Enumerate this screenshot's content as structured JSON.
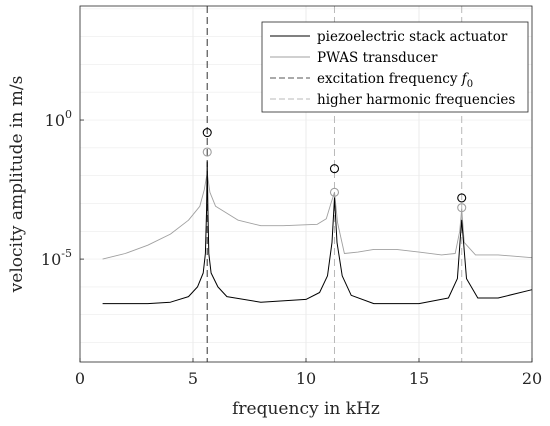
{
  "chart_data": {
    "type": "line",
    "xlabel": "frequency in kHz",
    "ylabel": "velocity amplitude in m/s",
    "xlim": [
      0,
      20
    ],
    "ylim_log10": [
      -8.7,
      4.1
    ],
    "yscale": "log",
    "grid": true,
    "legend_placement": "top-right",
    "x_ticks": [
      {
        "value": 0,
        "label": "0"
      },
      {
        "value": 5,
        "label": "5"
      },
      {
        "value": 10,
        "label": "10"
      },
      {
        "value": 15,
        "label": "15"
      },
      {
        "value": 20,
        "label": "20"
      }
    ],
    "y_ticks": [
      {
        "log10": 0,
        "base": "10",
        "exp": "0"
      },
      {
        "log10": -5,
        "base": "10",
        "exp": "-5"
      }
    ],
    "legend": [
      {
        "label": "piezoelectric stack actuator",
        "color": "#000000",
        "dash": "solid"
      },
      {
        "label": "PWAS transducer",
        "color": "#a0a0a0",
        "dash": "solid"
      },
      {
        "label": "excitation frequency ",
        "label_math": "f",
        "label_sub": "0",
        "color": "#555555",
        "dash": "dashed"
      },
      {
        "label": "higher harmonic frequencies",
        "color": "#b8b8b8",
        "dash": "dashed"
      }
    ],
    "reference_lines": [
      {
        "x": 5.63,
        "kind": "excitation"
      },
      {
        "x": 11.26,
        "kind": "harmonic"
      },
      {
        "x": 16.89,
        "kind": "harmonic"
      }
    ],
    "series": [
      {
        "name": "piezoelectric stack actuator",
        "color": "#000000",
        "points": [
          [
            1.0,
            -6.6
          ],
          [
            2.0,
            -6.6
          ],
          [
            3.0,
            -6.6
          ],
          [
            4.0,
            -6.55
          ],
          [
            4.8,
            -6.35
          ],
          [
            5.2,
            -6.0
          ],
          [
            5.45,
            -5.5
          ],
          [
            5.55,
            -4.8
          ],
          [
            5.6,
            -3.2
          ],
          [
            5.63,
            -1.5
          ],
          [
            5.66,
            -3.2
          ],
          [
            5.7,
            -4.8
          ],
          [
            5.8,
            -5.5
          ],
          [
            6.1,
            -6.0
          ],
          [
            6.5,
            -6.35
          ],
          [
            8.0,
            -6.55
          ],
          [
            10.0,
            -6.45
          ],
          [
            10.6,
            -6.2
          ],
          [
            10.95,
            -5.6
          ],
          [
            11.15,
            -4.4
          ],
          [
            11.26,
            -2.8
          ],
          [
            11.37,
            -4.4
          ],
          [
            11.6,
            -5.6
          ],
          [
            12.0,
            -6.3
          ],
          [
            13.0,
            -6.6
          ],
          [
            15.0,
            -6.6
          ],
          [
            16.3,
            -6.4
          ],
          [
            16.7,
            -5.7
          ],
          [
            16.83,
            -4.2
          ],
          [
            16.89,
            -3.6
          ],
          [
            16.95,
            -4.2
          ],
          [
            17.1,
            -5.7
          ],
          [
            17.6,
            -6.4
          ],
          [
            18.5,
            -6.4
          ],
          [
            20.0,
            -6.1
          ]
        ],
        "markers": [
          [
            5.63,
            -0.45
          ],
          [
            11.26,
            -1.75
          ],
          [
            16.89,
            -2.8
          ]
        ]
      },
      {
        "name": "PWAS transducer",
        "color": "#a0a0a0",
        "points": [
          [
            1.0,
            -5.0
          ],
          [
            2.0,
            -4.8
          ],
          [
            3.0,
            -4.5
          ],
          [
            4.0,
            -4.1
          ],
          [
            4.8,
            -3.6
          ],
          [
            5.3,
            -3.1
          ],
          [
            5.5,
            -2.5
          ],
          [
            5.63,
            -1.9
          ],
          [
            5.75,
            -2.6
          ],
          [
            6.0,
            -3.1
          ],
          [
            7.0,
            -3.6
          ],
          [
            8.0,
            -3.8
          ],
          [
            9.0,
            -3.8
          ],
          [
            10.5,
            -3.75
          ],
          [
            10.9,
            -3.55
          ],
          [
            11.1,
            -3.0
          ],
          [
            11.26,
            -2.6
          ],
          [
            11.4,
            -3.7
          ],
          [
            11.7,
            -4.8
          ],
          [
            12.3,
            -4.75
          ],
          [
            13.0,
            -4.65
          ],
          [
            14.0,
            -4.65
          ],
          [
            15.0,
            -4.75
          ],
          [
            16.0,
            -4.85
          ],
          [
            16.6,
            -4.8
          ],
          [
            16.8,
            -4.0
          ],
          [
            16.89,
            -3.2
          ],
          [
            17.0,
            -4.4
          ],
          [
            17.5,
            -4.85
          ],
          [
            18.5,
            -4.85
          ],
          [
            20.0,
            -4.95
          ]
        ],
        "markers": [
          [
            5.63,
            -1.15
          ],
          [
            11.26,
            -2.6
          ],
          [
            16.89,
            -3.15
          ]
        ]
      }
    ]
  }
}
